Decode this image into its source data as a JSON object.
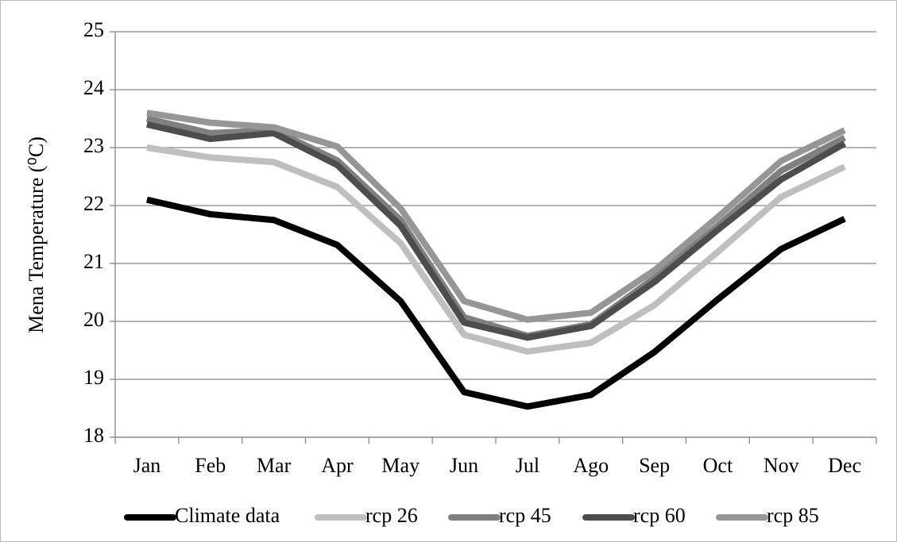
{
  "chart_data": {
    "type": "line",
    "y_label": "Mena Temperature (⁰C)",
    "categories": [
      "Jan",
      "Feb",
      "Mar",
      "Apr",
      "May",
      "Jun",
      "Jul",
      "Ago",
      "Sep",
      "Oct",
      "Nov",
      "Dec"
    ],
    "series": [
      {
        "name": "Climate data",
        "color": "#000000",
        "values": [
          22.1,
          21.85,
          21.75,
          21.32,
          20.35,
          18.78,
          18.53,
          18.73,
          19.47,
          20.38,
          21.25,
          21.77
        ]
      },
      {
        "name": "rcp 26",
        "color": "#bfbfbf",
        "values": [
          23.0,
          22.83,
          22.75,
          22.32,
          21.35,
          19.77,
          19.48,
          19.63,
          20.28,
          21.2,
          22.15,
          22.67
        ]
      },
      {
        "name": "rcp 45",
        "color": "#7f7f7f",
        "values": [
          23.5,
          23.25,
          23.3,
          22.78,
          21.75,
          20.07,
          19.75,
          19.95,
          20.75,
          21.65,
          22.6,
          23.17
        ]
      },
      {
        "name": "rcp 60",
        "color": "#4d4d4d",
        "values": [
          23.4,
          23.15,
          23.25,
          22.7,
          21.65,
          19.98,
          19.72,
          19.92,
          20.68,
          21.58,
          22.45,
          23.07
        ]
      },
      {
        "name": "rcp 85",
        "color": "#969696",
        "values": [
          23.6,
          23.43,
          23.35,
          23.02,
          21.95,
          20.35,
          20.03,
          20.15,
          20.88,
          21.8,
          22.77,
          23.3
        ]
      }
    ],
    "ylim": [
      18,
      25
    ],
    "yticks": [
      18,
      19,
      20,
      21,
      22,
      23,
      24,
      25
    ],
    "grid": true,
    "legend": "bottom"
  }
}
